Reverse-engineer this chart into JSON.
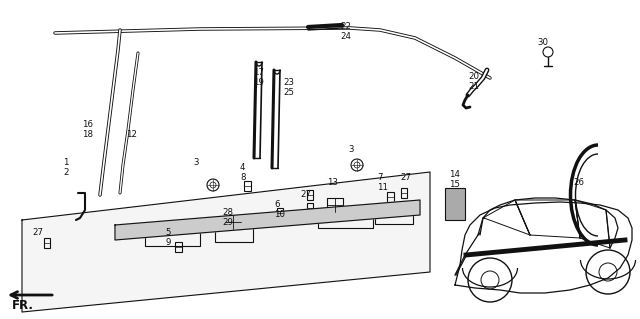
{
  "bg_color": "#ffffff",
  "line_color": "#111111",
  "fig_width": 6.4,
  "fig_height": 3.19,
  "dpi": 100
}
